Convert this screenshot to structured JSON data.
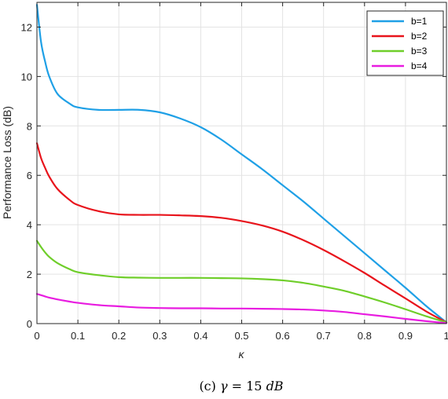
{
  "chart_data": {
    "type": "line",
    "title": "",
    "xlabel": "κ",
    "ylabel": "Performance Loss (dB)",
    "xlim": [
      0,
      1
    ],
    "ylim": [
      0,
      13
    ],
    "xticks": [
      0,
      0.1,
      0.2,
      0.3,
      0.4,
      0.5,
      0.6,
      0.7,
      0.8,
      0.9,
      1
    ],
    "xtick_labels": [
      "0",
      "0.1",
      "0.2",
      "0.3",
      "0.4",
      "0.5",
      "0.6",
      "0.7",
      "0.8",
      "0.9",
      "1"
    ],
    "yticks": [
      0,
      2,
      4,
      6,
      8,
      10,
      12
    ],
    "ytick_labels": [
      "0",
      "2",
      "4",
      "6",
      "8",
      "10",
      "12"
    ],
    "grid": true,
    "legend": "top-right",
    "caption": "(c) γ = 15 dB",
    "caption_parts": {
      "prefix": "(c) ",
      "gamma": "γ",
      "rest": " = 15 ",
      "unit": "dB"
    },
    "x": [
      0,
      0.01,
      0.02,
      0.03,
      0.05,
      0.08,
      0.1,
      0.15,
      0.2,
      0.25,
      0.3,
      0.35,
      0.4,
      0.45,
      0.5,
      0.55,
      0.6,
      0.65,
      0.7,
      0.75,
      0.8,
      0.85,
      0.9,
      0.95,
      1
    ],
    "series": [
      {
        "name": "b=1",
        "color": "#1fa0e6",
        "values": [
          12.9,
          11.4,
          10.6,
          10.0,
          9.3,
          8.9,
          8.75,
          8.65,
          8.65,
          8.65,
          8.55,
          8.3,
          7.95,
          7.45,
          6.85,
          6.25,
          5.6,
          4.95,
          4.25,
          3.55,
          2.85,
          2.15,
          1.45,
          0.72,
          0.05
        ]
      },
      {
        "name": "b=2",
        "color": "#e8141c",
        "values": [
          7.3,
          6.7,
          6.3,
          5.95,
          5.45,
          5.0,
          4.8,
          4.55,
          4.42,
          4.4,
          4.4,
          4.38,
          4.35,
          4.28,
          4.15,
          3.97,
          3.72,
          3.38,
          2.98,
          2.53,
          2.05,
          1.53,
          1.02,
          0.5,
          0.05
        ]
      },
      {
        "name": "b=3",
        "color": "#6fce2a",
        "values": [
          3.35,
          3.1,
          2.88,
          2.7,
          2.45,
          2.2,
          2.08,
          1.96,
          1.88,
          1.86,
          1.85,
          1.85,
          1.85,
          1.84,
          1.83,
          1.8,
          1.75,
          1.65,
          1.5,
          1.33,
          1.1,
          0.85,
          0.58,
          0.3,
          0.05
        ]
      },
      {
        "name": "b=4",
        "color": "#e81ce0",
        "values": [
          1.2,
          1.15,
          1.1,
          1.05,
          0.98,
          0.89,
          0.84,
          0.75,
          0.7,
          0.65,
          0.63,
          0.62,
          0.62,
          0.61,
          0.61,
          0.6,
          0.59,
          0.57,
          0.53,
          0.47,
          0.38,
          0.29,
          0.19,
          0.1,
          0.02
        ]
      }
    ]
  }
}
